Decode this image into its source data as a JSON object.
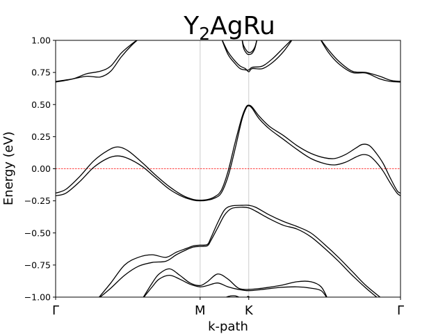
{
  "chart_data": {
    "type": "line",
    "title": {
      "main": "Y",
      "sub1": "2",
      "rest": "AgRu"
    },
    "xlabel": "k-path",
    "ylabel": "Energy (eV)",
    "ylim": [
      -1.0,
      1.0
    ],
    "xlim": [
      0,
      1
    ],
    "yticks": [
      -1.0,
      -0.75,
      -0.5,
      -0.25,
      0.0,
      0.25,
      0.5,
      0.75,
      1.0
    ],
    "ytick_labels": [
      "−1.00",
      "−0.75",
      "−0.50",
      "−0.25",
      "0.00",
      "0.25",
      "0.50",
      "0.75",
      "1.00"
    ],
    "kpoints": [
      {
        "label": "Γ",
        "x": 0.0
      },
      {
        "label": "M",
        "x": 0.419
      },
      {
        "label": "K",
        "x": 0.56
      },
      {
        "label": "Γ",
        "x": 1.0
      }
    ],
    "fermi_level": 0.0,
    "colors": {
      "bands": "#000000",
      "fermi": "#ff0000",
      "kline": "#cccccc"
    },
    "series": [
      {
        "values": [
          [
            0,
            0.68
          ],
          [
            0.05,
            0.7
          ],
          [
            0.09,
            0.72
          ],
          [
            0.13,
            0.715
          ],
          [
            0.16,
            0.76
          ],
          [
            0.19,
            0.87
          ],
          [
            0.22,
            0.96
          ],
          [
            0.245,
            1.02
          ]
        ]
      },
      {
        "values": [
          [
            0,
            0.675
          ],
          [
            0.05,
            0.7
          ],
          [
            0.09,
            0.74
          ],
          [
            0.13,
            0.76
          ],
          [
            0.16,
            0.8
          ],
          [
            0.19,
            0.9
          ],
          [
            0.22,
            0.97
          ],
          [
            0.245,
            1.02
          ]
        ]
      },
      {
        "values": [
          [
            0.54,
            1.02
          ],
          [
            0.545,
            0.96
          ],
          [
            0.555,
            0.915
          ],
          [
            0.562,
            0.905
          ],
          [
            0.57,
            0.915
          ],
          [
            0.578,
            0.95
          ],
          [
            0.585,
            1.02
          ]
        ]
      },
      {
        "values": [
          [
            0.54,
            1.02
          ],
          [
            0.545,
            0.94
          ],
          [
            0.555,
            0.895
          ],
          [
            0.562,
            0.89
          ],
          [
            0.57,
            0.9
          ],
          [
            0.578,
            0.94
          ],
          [
            0.585,
            1.02
          ]
        ]
      },
      {
        "values": [
          [
            0.48,
            1.02
          ],
          [
            0.5,
            0.91
          ],
          [
            0.52,
            0.84
          ],
          [
            0.535,
            0.8
          ],
          [
            0.55,
            0.78
          ],
          [
            0.56,
            0.755
          ],
          [
            0.57,
            0.78
          ],
          [
            0.6,
            0.78
          ],
          [
            0.63,
            0.83
          ],
          [
            0.66,
            0.91
          ],
          [
            0.69,
            1.02
          ]
        ]
      },
      {
        "values": [
          [
            0.48,
            1.02
          ],
          [
            0.5,
            0.89
          ],
          [
            0.52,
            0.82
          ],
          [
            0.535,
            0.78
          ],
          [
            0.55,
            0.77
          ],
          [
            0.56,
            0.77
          ],
          [
            0.57,
            0.79
          ],
          [
            0.6,
            0.8
          ],
          [
            0.63,
            0.86
          ],
          [
            0.66,
            0.94
          ],
          [
            0.69,
            1.02
          ]
        ]
      },
      {
        "values": [
          [
            0.765,
            1.02
          ],
          [
            0.79,
            0.91
          ],
          [
            0.82,
            0.82
          ],
          [
            0.86,
            0.75
          ],
          [
            0.9,
            0.745
          ],
          [
            0.94,
            0.7
          ],
          [
            0.97,
            0.68
          ],
          [
            1.0,
            0.675
          ]
        ]
      },
      {
        "values": [
          [
            0.765,
            1.02
          ],
          [
            0.79,
            0.93
          ],
          [
            0.82,
            0.84
          ],
          [
            0.86,
            0.76
          ],
          [
            0.9,
            0.75
          ],
          [
            0.94,
            0.72
          ],
          [
            0.97,
            0.69
          ],
          [
            1.0,
            0.68
          ]
        ]
      },
      {
        "values": [
          [
            0,
            -0.19
          ],
          [
            0.03,
            -0.16
          ],
          [
            0.07,
            -0.06
          ],
          [
            0.11,
            0.06
          ],
          [
            0.15,
            0.14
          ],
          [
            0.18,
            0.17
          ],
          [
            0.21,
            0.14
          ],
          [
            0.25,
            0.05
          ],
          [
            0.29,
            -0.05
          ],
          [
            0.33,
            -0.14
          ],
          [
            0.37,
            -0.21
          ],
          [
            0.4,
            -0.24
          ],
          [
            0.419,
            -0.245
          ],
          [
            0.44,
            -0.24
          ],
          [
            0.46,
            -0.22
          ],
          [
            0.48,
            -0.17
          ],
          [
            0.5,
            -0.02
          ],
          [
            0.52,
            0.2
          ],
          [
            0.54,
            0.4
          ],
          [
            0.552,
            0.48
          ],
          [
            0.56,
            0.495
          ],
          [
            0.57,
            0.48
          ],
          [
            0.59,
            0.41
          ],
          [
            0.62,
            0.33
          ],
          [
            0.66,
            0.26
          ],
          [
            0.7,
            0.18
          ],
          [
            0.74,
            0.12
          ],
          [
            0.78,
            0.085
          ],
          [
            0.81,
            0.08
          ],
          [
            0.84,
            0.11
          ],
          [
            0.87,
            0.16
          ],
          [
            0.89,
            0.19
          ],
          [
            0.91,
            0.18
          ],
          [
            0.93,
            0.12
          ],
          [
            0.95,
            0.04
          ],
          [
            0.97,
            -0.07
          ],
          [
            0.99,
            -0.17
          ],
          [
            1.0,
            -0.19
          ]
        ]
      },
      {
        "values": [
          [
            0,
            -0.21
          ],
          [
            0.03,
            -0.19
          ],
          [
            0.07,
            -0.1
          ],
          [
            0.11,
            0.01
          ],
          [
            0.15,
            0.08
          ],
          [
            0.18,
            0.1
          ],
          [
            0.21,
            0.08
          ],
          [
            0.25,
            0.02
          ],
          [
            0.29,
            -0.07
          ],
          [
            0.33,
            -0.16
          ],
          [
            0.37,
            -0.22
          ],
          [
            0.4,
            -0.245
          ],
          [
            0.419,
            -0.25
          ],
          [
            0.44,
            -0.245
          ],
          [
            0.46,
            -0.23
          ],
          [
            0.48,
            -0.19
          ],
          [
            0.5,
            -0.06
          ],
          [
            0.52,
            0.15
          ],
          [
            0.54,
            0.38
          ],
          [
            0.552,
            0.47
          ],
          [
            0.56,
            0.49
          ],
          [
            0.57,
            0.47
          ],
          [
            0.59,
            0.39
          ],
          [
            0.62,
            0.31
          ],
          [
            0.66,
            0.23
          ],
          [
            0.7,
            0.15
          ],
          [
            0.74,
            0.08
          ],
          [
            0.78,
            0.04
          ],
          [
            0.81,
            0.03
          ],
          [
            0.84,
            0.05
          ],
          [
            0.87,
            0.09
          ],
          [
            0.89,
            0.11
          ],
          [
            0.91,
            0.1
          ],
          [
            0.93,
            0.05
          ],
          [
            0.95,
            -0.02
          ],
          [
            0.97,
            -0.11
          ],
          [
            0.99,
            -0.19
          ],
          [
            1.0,
            -0.21
          ]
        ]
      },
      {
        "values": [
          [
            0.12,
            -1.02
          ],
          [
            0.16,
            -0.93
          ],
          [
            0.2,
            -0.83
          ],
          [
            0.24,
            -0.76
          ],
          [
            0.28,
            -0.73
          ],
          [
            0.32,
            -0.72
          ],
          [
            0.35,
            -0.67
          ],
          [
            0.38,
            -0.63
          ],
          [
            0.4,
            -0.61
          ],
          [
            0.419,
            -0.605
          ],
          [
            0.44,
            -0.6
          ],
          [
            0.45,
            -0.56
          ],
          [
            0.47,
            -0.46
          ],
          [
            0.49,
            -0.36
          ],
          [
            0.51,
            -0.31
          ],
          [
            0.54,
            -0.3
          ],
          [
            0.56,
            -0.305
          ],
          [
            0.58,
            -0.33
          ],
          [
            0.62,
            -0.39
          ],
          [
            0.66,
            -0.44
          ],
          [
            0.7,
            -0.47
          ],
          [
            0.74,
            -0.53
          ],
          [
            0.78,
            -0.62
          ],
          [
            0.82,
            -0.72
          ],
          [
            0.86,
            -0.83
          ],
          [
            0.9,
            -0.93
          ],
          [
            0.94,
            -1.02
          ]
        ]
      },
      {
        "values": [
          [
            0.12,
            -1.02
          ],
          [
            0.16,
            -0.89
          ],
          [
            0.2,
            -0.75
          ],
          [
            0.24,
            -0.69
          ],
          [
            0.28,
            -0.67
          ],
          [
            0.32,
            -0.69
          ],
          [
            0.35,
            -0.65
          ],
          [
            0.38,
            -0.62
          ],
          [
            0.4,
            -0.6
          ],
          [
            0.419,
            -0.595
          ],
          [
            0.44,
            -0.59
          ],
          [
            0.45,
            -0.54
          ],
          [
            0.47,
            -0.42
          ],
          [
            0.49,
            -0.32
          ],
          [
            0.51,
            -0.29
          ],
          [
            0.54,
            -0.285
          ],
          [
            0.56,
            -0.285
          ],
          [
            0.58,
            -0.3
          ],
          [
            0.62,
            -0.36
          ],
          [
            0.66,
            -0.41
          ],
          [
            0.7,
            -0.45
          ],
          [
            0.74,
            -0.5
          ],
          [
            0.78,
            -0.59
          ],
          [
            0.82,
            -0.69
          ],
          [
            0.86,
            -0.8
          ],
          [
            0.9,
            -0.91
          ],
          [
            0.95,
            -1.02
          ]
        ]
      },
      {
        "values": [
          [
            0.25,
            -1.02
          ],
          [
            0.28,
            -0.92
          ],
          [
            0.3,
            -0.86
          ],
          [
            0.33,
            -0.83
          ],
          [
            0.36,
            -0.86
          ],
          [
            0.39,
            -0.9
          ],
          [
            0.419,
            -0.92
          ],
          [
            0.44,
            -0.91
          ],
          [
            0.47,
            -0.89
          ],
          [
            0.5,
            -0.92
          ],
          [
            0.53,
            -0.94
          ],
          [
            0.56,
            -0.95
          ],
          [
            0.6,
            -0.94
          ],
          [
            0.65,
            -0.925
          ],
          [
            0.7,
            -0.92
          ],
          [
            0.74,
            -0.93
          ],
          [
            0.77,
            -0.95
          ],
          [
            0.79,
            -1.02
          ]
        ]
      },
      {
        "values": [
          [
            0.25,
            -1.02
          ],
          [
            0.28,
            -0.89
          ],
          [
            0.3,
            -0.82
          ],
          [
            0.33,
            -0.78
          ],
          [
            0.36,
            -0.83
          ],
          [
            0.39,
            -0.89
          ],
          [
            0.419,
            -0.91
          ],
          [
            0.44,
            -0.88
          ],
          [
            0.47,
            -0.82
          ],
          [
            0.5,
            -0.86
          ],
          [
            0.53,
            -0.93
          ],
          [
            0.56,
            -0.94
          ],
          [
            0.6,
            -0.93
          ],
          [
            0.65,
            -0.91
          ],
          [
            0.7,
            -0.88
          ],
          [
            0.74,
            -0.88
          ],
          [
            0.77,
            -0.92
          ],
          [
            0.79,
            -1.02
          ]
        ]
      },
      {
        "values": [
          [
            0.48,
            -1.02
          ],
          [
            0.5,
            -0.995
          ],
          [
            0.52,
            -0.99
          ],
          [
            0.54,
            -1.01
          ],
          [
            0.552,
            -1.02
          ]
        ]
      },
      {
        "values": [
          [
            0.552,
            -1.02
          ],
          [
            0.557,
            -0.995
          ],
          [
            0.562,
            -1.0
          ],
          [
            0.567,
            -1.02
          ]
        ]
      }
    ]
  }
}
